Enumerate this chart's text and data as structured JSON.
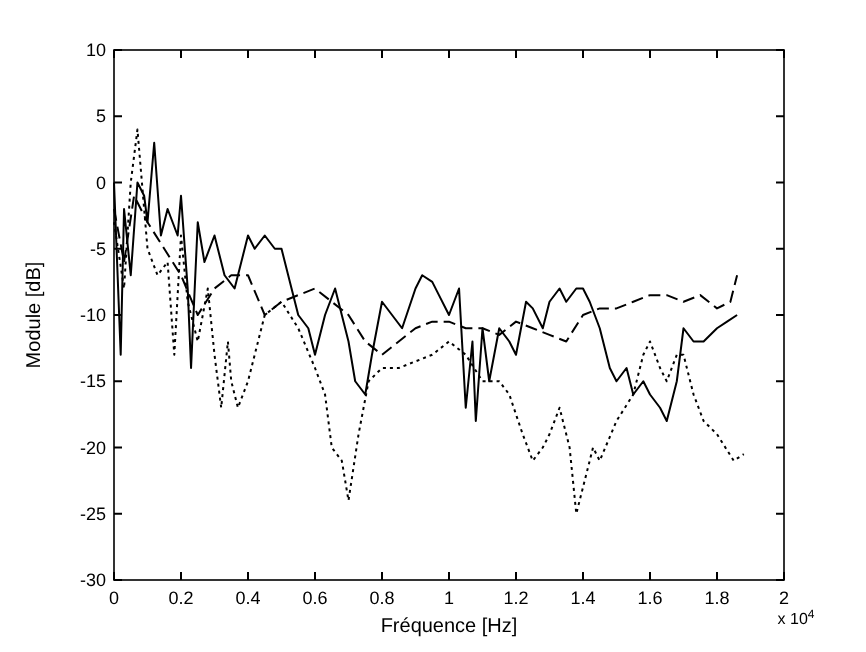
{
  "chart_data": {
    "type": "line",
    "xlabel": "Fréquence [Hz]",
    "ylabel": "Module [dB]",
    "annotations": [
      "x 10$^{4}$"
    ],
    "xlim": [
      0,
      2
    ],
    "xticks": [
      0,
      0.2,
      0.4,
      0.6,
      0.8,
      1,
      1.2,
      1.4,
      1.6,
      1.8,
      2
    ],
    "ylim": [
      -30,
      10
    ],
    "yticks": [
      -30,
      -25,
      -20,
      -15,
      -10,
      -5,
      0,
      5,
      10
    ],
    "grid": false,
    "series": [
      {
        "color": "#000000",
        "line_style": "solid",
        "x": [
          0,
          0.02,
          0.03,
          0.05,
          0.07,
          0.09,
          0.1,
          0.12,
          0.14,
          0.16,
          0.19,
          0.2,
          0.22,
          0.23,
          0.25,
          0.27,
          0.3,
          0.33,
          0.36,
          0.4,
          0.42,
          0.45,
          0.48,
          0.5,
          0.53,
          0.55,
          0.58,
          0.6,
          0.63,
          0.66,
          0.7,
          0.72,
          0.75,
          0.77,
          0.8,
          0.83,
          0.86,
          0.9,
          0.92,
          0.95,
          0.97,
          1,
          1.03,
          1.05,
          1.07,
          1.08,
          1.1,
          1.12,
          1.15,
          1.18,
          1.2,
          1.23,
          1.25,
          1.28,
          1.3,
          1.33,
          1.35,
          1.38,
          1.4,
          1.42,
          1.45,
          1.48,
          1.5,
          1.53,
          1.55,
          1.58,
          1.6,
          1.63,
          1.65,
          1.68,
          1.7,
          1.73,
          1.76,
          1.8,
          1.83,
          1.86
        ],
        "values": [
          0,
          -13,
          -2,
          -7,
          0,
          -1,
          -3,
          3,
          -4,
          -2,
          -4,
          -1,
          -8,
          -14,
          -3,
          -6,
          -4,
          -7,
          -8,
          -4,
          -5,
          -4,
          -5,
          -5,
          -8,
          -10,
          -11,
          -13,
          -10,
          -8,
          -12,
          -15,
          -16,
          -13,
          -9,
          -10,
          -11,
          -8,
          -7,
          -7.5,
          -8.5,
          -10,
          -8,
          -17,
          -12,
          -18,
          -11,
          -15,
          -11,
          -12,
          -13,
          -9,
          -9.5,
          -11,
          -9,
          -8,
          -9,
          -8,
          -8,
          -9,
          -11,
          -14,
          -15,
          -14,
          -16,
          -15,
          -16,
          -17,
          -18,
          -15,
          -11,
          -12,
          -12,
          -11,
          -10.5,
          -10
        ]
      },
      {
        "color": "#000000",
        "line_style": "dashed",
        "x": [
          0,
          0.03,
          0.06,
          0.1,
          0.15,
          0.2,
          0.25,
          0.3,
          0.35,
          0.4,
          0.45,
          0.5,
          0.55,
          0.6,
          0.65,
          0.7,
          0.75,
          0.8,
          0.85,
          0.9,
          0.95,
          1,
          1.05,
          1.1,
          1.15,
          1.2,
          1.25,
          1.3,
          1.35,
          1.4,
          1.45,
          1.5,
          1.55,
          1.6,
          1.65,
          1.7,
          1.75,
          1.8,
          1.84,
          1.86
        ],
        "values": [
          -2,
          -6,
          -1,
          -3,
          -5,
          -7,
          -10,
          -8,
          -7,
          -7,
          -10,
          -9,
          -8.5,
          -8,
          -9,
          -10,
          -12,
          -13,
          -12,
          -11,
          -10.5,
          -10.5,
          -11,
          -11,
          -11.5,
          -10.5,
          -11,
          -11.5,
          -12,
          -10,
          -9.5,
          -9.5,
          -9,
          -8.5,
          -8.5,
          -9,
          -8.5,
          -9.5,
          -9,
          -7
        ]
      },
      {
        "color": "#000000",
        "line_style": "dotted",
        "x": [
          0,
          0.03,
          0.05,
          0.07,
          0.1,
          0.13,
          0.16,
          0.18,
          0.2,
          0.22,
          0.25,
          0.28,
          0.3,
          0.32,
          0.34,
          0.35,
          0.37,
          0.4,
          0.43,
          0.45,
          0.5,
          0.55,
          0.6,
          0.63,
          0.65,
          0.68,
          0.7,
          0.73,
          0.76,
          0.8,
          0.85,
          0.9,
          0.95,
          1,
          1.05,
          1.1,
          1.15,
          1.18,
          1.22,
          1.25,
          1.28,
          1.3,
          1.33,
          1.36,
          1.38,
          1.4,
          1.43,
          1.45,
          1.5,
          1.55,
          1.58,
          1.6,
          1.63,
          1.65,
          1.68,
          1.7,
          1.73,
          1.76,
          1.8,
          1.85,
          1.88
        ],
        "values": [
          -3,
          -8,
          0,
          4,
          -5,
          -7,
          -6,
          -13,
          -4,
          -9,
          -12,
          -8,
          -13,
          -17,
          -12,
          -15,
          -17,
          -15,
          -12,
          -10,
          -9,
          -11,
          -14,
          -16,
          -20,
          -21,
          -24,
          -19,
          -15,
          -14,
          -14,
          -13.5,
          -13,
          -12,
          -13,
          -15,
          -15,
          -16,
          -19,
          -21,
          -20,
          -19,
          -17,
          -20,
          -25,
          -23,
          -20,
          -21,
          -18,
          -16,
          -13,
          -12,
          -14,
          -15,
          -13,
          -13,
          -16,
          -18,
          -19,
          -21,
          -20.5
        ]
      }
    ]
  }
}
